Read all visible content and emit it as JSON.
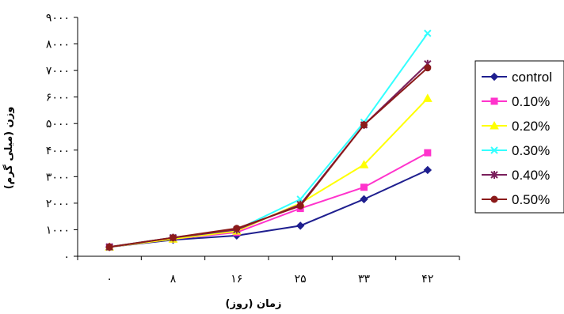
{
  "chart_data": {
    "type": "line",
    "xlabel": "زمان  (روز)",
    "ylabel": "وزن (میلی گرم)",
    "ylim": [
      0,
      9000
    ],
    "y_ticks": [
      "۰",
      "۱۰۰۰",
      "۲۰۰۰",
      "۳۰۰۰",
      "۴۰۰۰",
      "۵۰۰۰",
      "۶۰۰۰",
      "۷۰۰۰",
      "۸۰۰۰",
      "۹۰۰۰"
    ],
    "categories": [
      "۰",
      "۸",
      "۱۶",
      "۲۵",
      "۳۳",
      "۴۲"
    ],
    "grid": false,
    "legend_position": "right",
    "series": [
      {
        "name": "control",
        "color": "#1f1f8f",
        "marker": "diamond",
        "values": [
          350,
          620,
          780,
          1150,
          2150,
          3250
        ]
      },
      {
        "name": "0.10%",
        "color": "#ff33cc",
        "marker": "square",
        "values": [
          350,
          650,
          900,
          1800,
          2600,
          3900
        ]
      },
      {
        "name": "0.20%",
        "color": "#ffff00",
        "marker": "triangle",
        "values": [
          350,
          650,
          950,
          2000,
          3450,
          5950
        ]
      },
      {
        "name": "0.30%",
        "color": "#33ffff",
        "marker": "x",
        "values": [
          350,
          700,
          1000,
          2150,
          5050,
          8400
        ]
      },
      {
        "name": "0.40%",
        "color": "#7a1f5c",
        "marker": "star",
        "values": [
          350,
          700,
          1000,
          1950,
          4950,
          7250
        ]
      },
      {
        "name": "0.50%",
        "color": "#8b1a1a",
        "marker": "circle",
        "values": [
          350,
          700,
          1050,
          1900,
          4950,
          7100
        ]
      }
    ]
  }
}
